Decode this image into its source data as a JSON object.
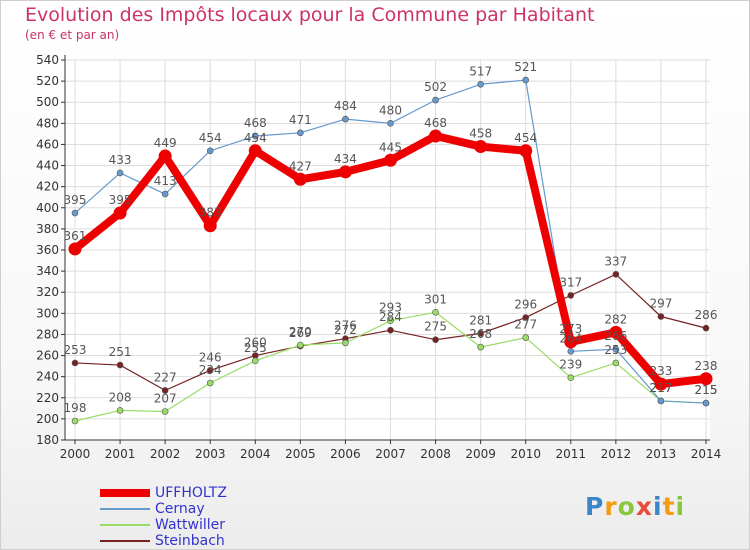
{
  "title": "Evolution des Impôts locaux pour la Commune par Habitant",
  "subtitle": "(en € et par an)",
  "logo": {
    "text": "Proxiti",
    "letters": [
      "P",
      "r",
      "o",
      "x",
      "i",
      "t",
      "i"
    ]
  },
  "chart_data": {
    "type": "line",
    "x": [
      "2000",
      "2001",
      "2002",
      "2003",
      "2004",
      "2005",
      "2006",
      "2007",
      "2008",
      "2009",
      "2010",
      "2011",
      "2012",
      "2013",
      "2014"
    ],
    "ylim": [
      180,
      540
    ],
    "yticks": [
      180,
      200,
      220,
      240,
      260,
      280,
      300,
      320,
      340,
      360,
      380,
      400,
      420,
      440,
      460,
      480,
      500,
      520,
      540
    ],
    "grid": true,
    "legend_position": "bottom-left",
    "series": [
      {
        "name": "UFFHOLTZ",
        "color": "#ee0000",
        "width": 8,
        "label_color": "#555555",
        "values": [
          361,
          395,
          449,
          383,
          454,
          427,
          434,
          445,
          468,
          458,
          454,
          273,
          282,
          233,
          238
        ]
      },
      {
        "name": "Cernay",
        "color": "#6699cc",
        "width": 1.2,
        "label_color": "#555555",
        "values": [
          395,
          433,
          413,
          454,
          468,
          471,
          484,
          480,
          502,
          517,
          521,
          264,
          266,
          217,
          215
        ]
      },
      {
        "name": "Wattwiller",
        "color": "#99dd66",
        "width": 1.2,
        "label_color": "#555555",
        "values": [
          198,
          208,
          207,
          234,
          255,
          270,
          272,
          293,
          301,
          268,
          277,
          239,
          253,
          217,
          215
        ]
      },
      {
        "name": "Steinbach",
        "color": "#772222",
        "width": 1.2,
        "label_color": "#555555",
        "values": [
          253,
          251,
          227,
          246,
          260,
          269,
          276,
          284,
          275,
          281,
          296,
          317,
          337,
          297,
          286
        ]
      }
    ]
  }
}
